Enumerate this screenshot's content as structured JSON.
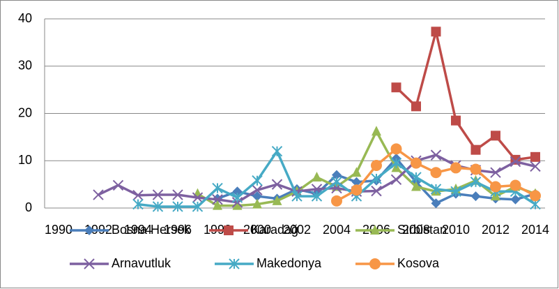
{
  "chart_data": {
    "type": "line",
    "categories": [
      "1990",
      null,
      "1992",
      null,
      "1994",
      null,
      "1996",
      null,
      "1998",
      null,
      "2000",
      null,
      "2002",
      null,
      "2004",
      null,
      "2006",
      null,
      "2008",
      null,
      "2010",
      null,
      "2012",
      null,
      "2014"
    ],
    "series": [
      {
        "name": "Bosna Hersek",
        "color": "#4a7ebb",
        "marker": "diamond",
        "values": [
          null,
          null,
          null,
          null,
          null,
          null,
          null,
          null,
          2.0,
          3.5,
          2.5,
          2.0,
          4.0,
          3.0,
          7.0,
          5.5,
          5.8,
          10.5,
          5.5,
          1.0,
          3.0,
          2.5,
          2.0,
          1.8,
          3.0
        ]
      },
      {
        "name": "Karadağ",
        "color": "#be4b48",
        "marker": "square",
        "values": [
          null,
          null,
          null,
          null,
          null,
          null,
          null,
          null,
          null,
          null,
          null,
          null,
          null,
          null,
          null,
          null,
          null,
          25.5,
          21.5,
          37.3,
          18.5,
          12.3,
          15.3,
          10.2,
          10.8
        ]
      },
      {
        "name": "Sırbistan",
        "color": "#98b954",
        "marker": "triangle",
        "values": [
          null,
          null,
          null,
          null,
          null,
          null,
          null,
          3.0,
          0.5,
          0.5,
          0.8,
          1.5,
          3.5,
          6.5,
          4.5,
          7.5,
          16.2,
          8.5,
          4.5,
          3.5,
          4.0,
          5.8,
          2.5,
          4.5,
          3.0
        ]
      },
      {
        "name": "Arnavutluk",
        "color": "#7d60a0",
        "marker": "x",
        "values": [
          null,
          null,
          2.8,
          4.8,
          2.7,
          2.8,
          2.8,
          2.2,
          1.8,
          1.2,
          3.8,
          5.0,
          3.5,
          4.0,
          4.2,
          3.5,
          3.6,
          6.0,
          10.0,
          11.2,
          9.0,
          8.0,
          7.5,
          9.8,
          8.8
        ]
      },
      {
        "name": "Makedonya",
        "color": "#46aac5",
        "marker": "star",
        "values": [
          null,
          null,
          null,
          null,
          0.8,
          0.3,
          0.3,
          0.3,
          4.2,
          2.2,
          5.8,
          12.0,
          2.5,
          2.5,
          5.5,
          2.5,
          6.2,
          9.5,
          6.5,
          4.0,
          3.5,
          5.5,
          3.5,
          3.5,
          0.8
        ]
      },
      {
        "name": "Kosova",
        "color": "#f79646",
        "marker": "circle",
        "values": [
          null,
          null,
          null,
          null,
          null,
          null,
          null,
          null,
          null,
          null,
          null,
          null,
          null,
          null,
          1.5,
          3.8,
          9.0,
          12.5,
          9.5,
          7.5,
          8.5,
          8.2,
          4.5,
          4.8,
          2.6
        ]
      }
    ],
    "ylim": [
      0,
      40
    ],
    "yticks": [
      0,
      10,
      20,
      30,
      40
    ],
    "grid": true,
    "legend": "bottom"
  }
}
